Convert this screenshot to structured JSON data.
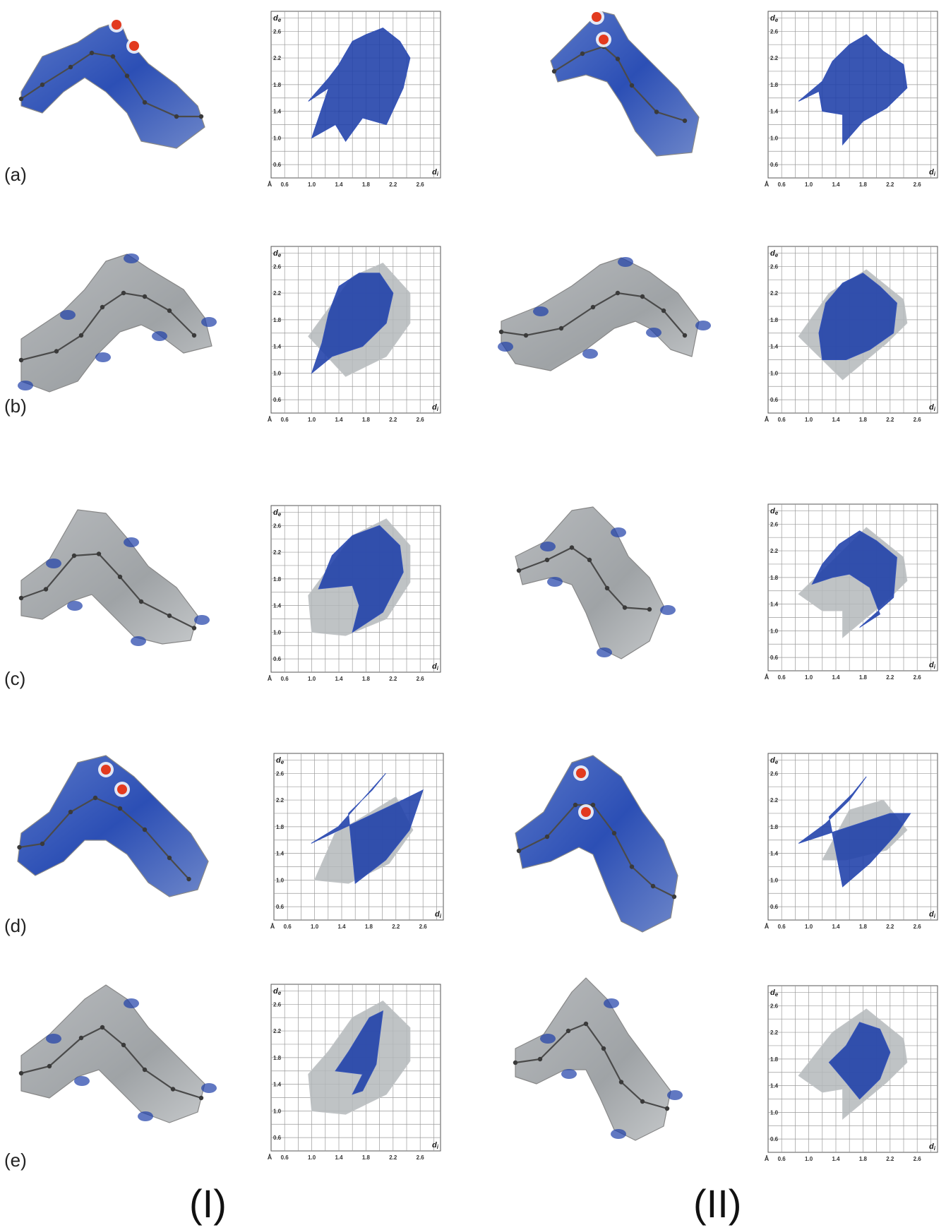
{
  "rows": [
    {
      "label": "(a)",
      "surface_style": "dnorm"
    },
    {
      "label": "(b)",
      "surface_style": "partial"
    },
    {
      "label": "(c)",
      "surface_style": "partial"
    },
    {
      "label": "(d)",
      "surface_style": "partial"
    },
    {
      "label": "(e)",
      "surface_style": "partial"
    }
  ],
  "columns": [
    {
      "label": "(I)"
    },
    {
      "label": "(II)"
    }
  ],
  "plot_text": {
    "y_axis": "de",
    "x_axis": "di",
    "unit": "Å"
  },
  "colors": {
    "highlight": "#1e3fa8",
    "background_points": "#b4b8bb",
    "red_spot": "#e23a1f",
    "grid": "#9a9a9a"
  },
  "chart_data": [
    {
      "type": "scatter",
      "panel": "(a)",
      "compound": "(I)",
      "xlabel": "di",
      "ylabel": "de",
      "unit": "Å",
      "x_ticks": [
        "0.6",
        "1.0",
        "1.4",
        "1.8",
        "2.2",
        "2.6"
      ],
      "y_ticks": [
        "0.6",
        "1.0",
        "1.4",
        "1.8",
        "2.2",
        "2.6"
      ],
      "xlim": [
        0.4,
        2.9
      ],
      "ylim": [
        0.4,
        2.9
      ],
      "grid": true,
      "highlight_region": [
        [
          0.95,
          1.55
        ],
        [
          1.25,
          1.75
        ],
        [
          1.0,
          1.0
        ],
        [
          1.35,
          1.2
        ],
        [
          1.5,
          0.95
        ],
        [
          1.75,
          1.3
        ],
        [
          2.1,
          1.2
        ],
        [
          2.35,
          1.75
        ],
        [
          2.45,
          2.2
        ],
        [
          2.3,
          2.45
        ],
        [
          2.05,
          2.65
        ],
        [
          1.8,
          2.55
        ],
        [
          1.6,
          2.45
        ],
        [
          1.4,
          2.1
        ],
        [
          1.25,
          1.9
        ]
      ],
      "background_region": []
    },
    {
      "type": "scatter",
      "panel": "(a)",
      "compound": "(II)",
      "xlabel": "di",
      "ylabel": "de",
      "unit": "Å",
      "x_ticks": [
        "0.6",
        "1.0",
        "1.4",
        "1.8",
        "2.2",
        "2.6"
      ],
      "y_ticks": [
        "0.6",
        "1.0",
        "1.4",
        "1.8",
        "2.2",
        "2.6"
      ],
      "xlim": [
        0.4,
        2.9
      ],
      "ylim": [
        0.4,
        2.9
      ],
      "grid": true,
      "highlight_region": [
        [
          0.85,
          1.55
        ],
        [
          1.15,
          1.7
        ],
        [
          1.2,
          1.4
        ],
        [
          1.5,
          1.35
        ],
        [
          1.5,
          0.9
        ],
        [
          1.8,
          1.25
        ],
        [
          2.15,
          1.45
        ],
        [
          2.45,
          1.75
        ],
        [
          2.4,
          2.1
        ],
        [
          2.1,
          2.3
        ],
        [
          1.85,
          2.55
        ],
        [
          1.6,
          2.4
        ],
        [
          1.35,
          2.15
        ],
        [
          1.2,
          1.85
        ]
      ],
      "background_region": []
    },
    {
      "type": "scatter",
      "panel": "(b)",
      "compound": "(I)",
      "xlabel": "di",
      "ylabel": "de",
      "unit": "Å",
      "x_ticks": [
        "0.6",
        "1.0",
        "1.4",
        "1.8",
        "2.2",
        "2.6"
      ],
      "y_ticks": [
        "0.6",
        "1.0",
        "1.4",
        "1.8",
        "2.2",
        "2.6"
      ],
      "xlim": [
        0.4,
        2.9
      ],
      "ylim": [
        0.4,
        2.9
      ],
      "grid": true,
      "highlight_region": [
        [
          1.0,
          1.0
        ],
        [
          1.3,
          1.25
        ],
        [
          1.75,
          1.4
        ],
        [
          2.1,
          1.75
        ],
        [
          2.2,
          2.2
        ],
        [
          2.0,
          2.5
        ],
        [
          1.7,
          2.5
        ],
        [
          1.4,
          2.3
        ],
        [
          1.25,
          1.9
        ],
        [
          1.15,
          1.45
        ]
      ],
      "background_region": [
        [
          0.95,
          1.55
        ],
        [
          1.5,
          0.95
        ],
        [
          2.1,
          1.25
        ],
        [
          2.45,
          1.75
        ],
        [
          2.45,
          2.2
        ],
        [
          2.05,
          2.65
        ],
        [
          1.6,
          2.45
        ],
        [
          1.2,
          1.9
        ]
      ]
    },
    {
      "type": "scatter",
      "panel": "(b)",
      "compound": "(II)",
      "xlabel": "di",
      "ylabel": "de",
      "unit": "Å",
      "x_ticks": [
        "0.6",
        "1.0",
        "1.4",
        "1.8",
        "2.2",
        "2.6"
      ],
      "y_ticks": [
        "0.6",
        "1.0",
        "1.4",
        "1.8",
        "2.2",
        "2.6"
      ],
      "xlim": [
        0.4,
        2.9
      ],
      "ylim": [
        0.4,
        2.9
      ],
      "grid": true,
      "highlight_region": [
        [
          1.2,
          1.2
        ],
        [
          1.55,
          1.2
        ],
        [
          1.9,
          1.35
        ],
        [
          2.25,
          1.6
        ],
        [
          2.3,
          2.05
        ],
        [
          2.05,
          2.3
        ],
        [
          1.8,
          2.5
        ],
        [
          1.5,
          2.35
        ],
        [
          1.25,
          2.05
        ],
        [
          1.15,
          1.6
        ]
      ],
      "background_region": [
        [
          0.85,
          1.55
        ],
        [
          1.5,
          0.9
        ],
        [
          2.15,
          1.45
        ],
        [
          2.45,
          1.75
        ],
        [
          2.4,
          2.1
        ],
        [
          1.85,
          2.55
        ],
        [
          1.3,
          2.2
        ]
      ]
    },
    {
      "type": "scatter",
      "panel": "(c)",
      "compound": "(I)",
      "xlabel": "di",
      "ylabel": "de",
      "unit": "Å",
      "x_ticks": [
        "0.6",
        "1.0",
        "1.4",
        "1.8",
        "2.2",
        "2.6"
      ],
      "y_ticks": [
        "0.6",
        "1.0",
        "1.4",
        "1.8",
        "2.2",
        "2.6"
      ],
      "xlim": [
        0.4,
        2.9
      ],
      "ylim": [
        0.4,
        2.9
      ],
      "grid": true,
      "highlight_region": [
        [
          1.1,
          1.65
        ],
        [
          1.6,
          1.7
        ],
        [
          1.7,
          1.4
        ],
        [
          1.6,
          1.0
        ],
        [
          2.05,
          1.3
        ],
        [
          2.35,
          1.9
        ],
        [
          2.3,
          2.3
        ],
        [
          2.0,
          2.6
        ],
        [
          1.6,
          2.45
        ],
        [
          1.3,
          2.15
        ]
      ],
      "background_region": [
        [
          0.95,
          1.55
        ],
        [
          1.0,
          1.0
        ],
        [
          1.5,
          0.95
        ],
        [
          2.1,
          1.2
        ],
        [
          2.45,
          1.75
        ],
        [
          2.45,
          2.3
        ],
        [
          2.1,
          2.7
        ],
        [
          1.6,
          2.45
        ]
      ]
    },
    {
      "type": "scatter",
      "panel": "(c)",
      "compound": "(II)",
      "xlabel": "di",
      "ylabel": "de",
      "unit": "Å",
      "x_ticks": [
        "0.6",
        "1.0",
        "1.4",
        "1.8",
        "2.2",
        "2.6"
      ],
      "y_ticks": [
        "0.6",
        "1.0",
        "1.4",
        "1.8",
        "2.2",
        "2.6"
      ],
      "xlim": [
        0.4,
        2.9
      ],
      "ylim": [
        0.4,
        2.9
      ],
      "grid": true,
      "highlight_region": [
        [
          1.05,
          1.7
        ],
        [
          1.35,
          1.8
        ],
        [
          1.6,
          1.85
        ],
        [
          1.9,
          1.65
        ],
        [
          2.05,
          1.25
        ],
        [
          1.75,
          1.05
        ],
        [
          2.25,
          1.5
        ],
        [
          2.3,
          2.1
        ],
        [
          2.0,
          2.35
        ],
        [
          1.75,
          2.5
        ],
        [
          1.45,
          2.3
        ],
        [
          1.2,
          2.0
        ]
      ],
      "background_region": [
        [
          0.85,
          1.55
        ],
        [
          1.2,
          1.3
        ],
        [
          1.5,
          1.3
        ],
        [
          1.5,
          0.9
        ],
        [
          2.15,
          1.45
        ],
        [
          2.45,
          1.75
        ],
        [
          2.4,
          2.1
        ],
        [
          1.85,
          2.55
        ]
      ]
    },
    {
      "type": "scatter",
      "panel": "(d)",
      "compound": "(I)",
      "xlabel": "di",
      "ylabel": "de",
      "unit": "Å",
      "x_ticks": [
        "0.6",
        "1.0",
        "1.4",
        "1.8",
        "2.2",
        "2.6"
      ],
      "y_ticks": [
        "0.6",
        "1.0",
        "1.4",
        "1.8",
        "2.2",
        "2.6"
      ],
      "xlim": [
        0.4,
        2.9
      ],
      "ylim": [
        0.4,
        2.9
      ],
      "grid": true,
      "highlight_region": [
        [
          0.95,
          1.55
        ],
        [
          1.35,
          1.8
        ],
        [
          1.7,
          2.2
        ],
        [
          2.05,
          2.6
        ],
        [
          1.85,
          2.35
        ],
        [
          1.5,
          2.0
        ],
        [
          1.6,
          0.95
        ],
        [
          2.05,
          1.3
        ],
        [
          2.4,
          1.75
        ],
        [
          2.6,
          2.35
        ],
        [
          2.3,
          2.2
        ]
      ],
      "background_region": [
        [
          1.0,
          1.0
        ],
        [
          1.5,
          0.95
        ],
        [
          2.1,
          1.25
        ],
        [
          2.45,
          1.75
        ],
        [
          2.2,
          2.25
        ],
        [
          1.8,
          2.0
        ],
        [
          1.3,
          1.7
        ]
      ]
    },
    {
      "type": "scatter",
      "panel": "(d)",
      "compound": "(II)",
      "xlabel": "di",
      "ylabel": "de",
      "unit": "Å",
      "x_ticks": [
        "0.6",
        "1.0",
        "1.4",
        "1.8",
        "2.2",
        "2.6"
      ],
      "y_ticks": [
        "0.6",
        "1.0",
        "1.4",
        "1.8",
        "2.2",
        "2.6"
      ],
      "xlim": [
        0.4,
        2.9
      ],
      "ylim": [
        0.4,
        2.9
      ],
      "grid": true,
      "highlight_region": [
        [
          0.85,
          1.55
        ],
        [
          1.25,
          1.85
        ],
        [
          1.6,
          2.2
        ],
        [
          1.85,
          2.55
        ],
        [
          1.65,
          2.3
        ],
        [
          1.3,
          1.95
        ],
        [
          1.5,
          0.9
        ],
        [
          1.9,
          1.25
        ],
        [
          2.3,
          1.7
        ],
        [
          2.5,
          2.0
        ],
        [
          2.2,
          2.0
        ]
      ],
      "background_region": [
        [
          1.2,
          1.3
        ],
        [
          1.55,
          1.3
        ],
        [
          2.15,
          1.45
        ],
        [
          2.45,
          1.75
        ],
        [
          2.1,
          2.2
        ],
        [
          1.6,
          2.05
        ]
      ]
    },
    {
      "type": "scatter",
      "panel": "(e)",
      "compound": "(I)",
      "xlabel": "di",
      "ylabel": "de",
      "unit": "Å",
      "x_ticks": [
        "0.6",
        "1.0",
        "1.4",
        "1.8",
        "2.2",
        "2.6"
      ],
      "y_ticks": [
        "0.6",
        "1.0",
        "1.4",
        "1.8",
        "2.2",
        "2.6"
      ],
      "xlim": [
        0.4,
        2.9
      ],
      "ylim": [
        0.4,
        2.9
      ],
      "grid": true,
      "highlight_region": [
        [
          1.35,
          1.6
        ],
        [
          1.55,
          1.9
        ],
        [
          1.85,
          2.4
        ],
        [
          2.05,
          2.5
        ],
        [
          2.0,
          2.1
        ],
        [
          1.95,
          1.7
        ],
        [
          1.75,
          1.3
        ],
        [
          1.6,
          1.25
        ],
        [
          1.75,
          1.55
        ]
      ],
      "background_region": [
        [
          0.95,
          1.55
        ],
        [
          1.0,
          1.0
        ],
        [
          1.5,
          0.95
        ],
        [
          2.1,
          1.25
        ],
        [
          2.45,
          1.75
        ],
        [
          2.45,
          2.25
        ],
        [
          2.05,
          2.65
        ],
        [
          1.6,
          2.4
        ],
        [
          1.25,
          1.9
        ]
      ]
    },
    {
      "type": "scatter",
      "panel": "(e)",
      "compound": "(II)",
      "xlabel": "di",
      "ylabel": "de",
      "unit": "Å",
      "x_ticks": [
        "0.6",
        "1.0",
        "1.4",
        "1.8",
        "2.2",
        "2.6"
      ],
      "y_ticks": [
        "0.6",
        "1.0",
        "1.4",
        "1.8",
        "2.2",
        "2.6"
      ],
      "xlim": [
        0.4,
        2.9
      ],
      "ylim": [
        0.4,
        2.9
      ],
      "grid": true,
      "highlight_region": [
        [
          1.3,
          1.75
        ],
        [
          1.55,
          2.0
        ],
        [
          1.75,
          2.35
        ],
        [
          2.05,
          2.25
        ],
        [
          2.2,
          1.9
        ],
        [
          2.05,
          1.5
        ],
        [
          1.75,
          1.2
        ],
        [
          1.55,
          1.45
        ]
      ],
      "background_region": [
        [
          0.85,
          1.55
        ],
        [
          1.2,
          1.3
        ],
        [
          1.5,
          1.35
        ],
        [
          1.5,
          0.9
        ],
        [
          2.15,
          1.45
        ],
        [
          2.45,
          1.75
        ],
        [
          2.4,
          2.1
        ],
        [
          1.85,
          2.55
        ],
        [
          1.35,
          2.2
        ]
      ]
    }
  ]
}
